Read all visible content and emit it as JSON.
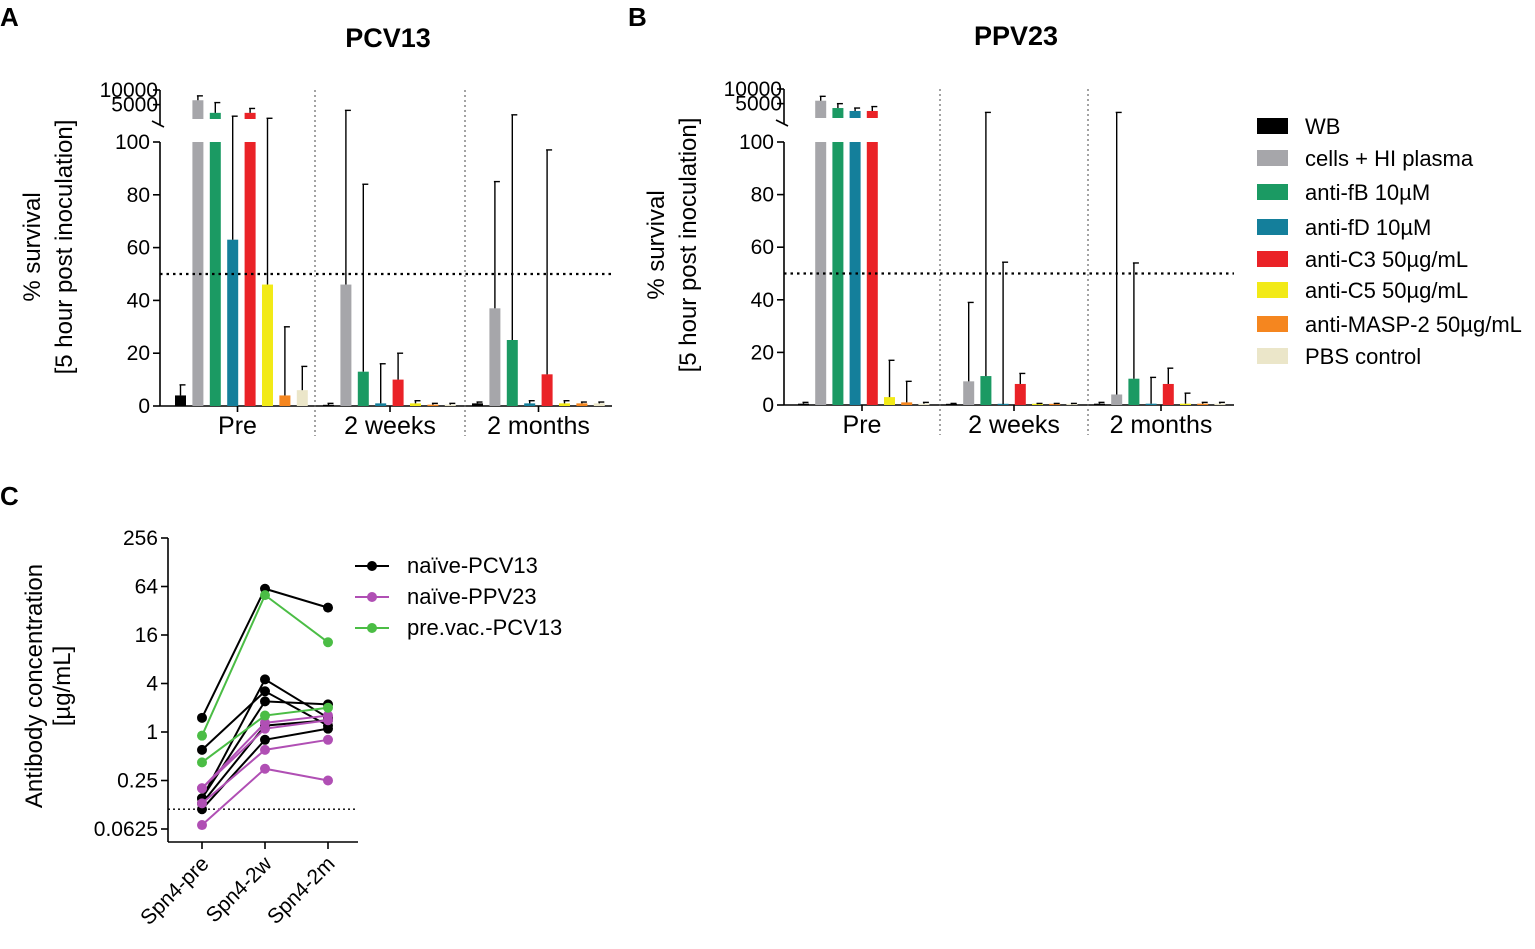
{
  "panels": {
    "a": "A",
    "b": "B",
    "c": "C"
  },
  "legend_ab": [
    {
      "label": "WB",
      "color": "#000000"
    },
    {
      "label": "cells + HI plasma",
      "color": "#a6a6aa"
    },
    {
      "label": "anti-fB 10µM",
      "color": "#1b9a63"
    },
    {
      "label": "anti-fD 10µM",
      "color": "#147f9b"
    },
    {
      "label": "anti-C3 50µg/mL",
      "color": "#ea2227"
    },
    {
      "label": "anti-C5 50µg/mL",
      "color": "#f2ea17"
    },
    {
      "label": "anti-MASP-2 50µg/mL",
      "color": "#f5861f"
    },
    {
      "label": "PBS control",
      "color": "#ebe6c9"
    }
  ],
  "chart_data": [
    {
      "type": "bar",
      "title": "PCV13",
      "ylabel_line1": "% survival",
      "ylabel_line2": "[5 hour post inoculation]",
      "yticks_lower": [
        "0",
        "20",
        "40",
        "60",
        "80",
        "100"
      ],
      "yticks_upper": [
        "5000",
        "10000"
      ],
      "ylim": [
        0,
        10000
      ],
      "axis_break": 100,
      "reference_line": 50,
      "categories": [
        "Pre",
        "2 weeks",
        "2 months"
      ],
      "series": [
        {
          "name": "WB",
          "values": [
            4,
            0,
            1
          ],
          "errors": [
            4,
            1,
            0.5
          ]
        },
        {
          "name": "cells + HI plasma",
          "values": [
            6500,
            46,
            37
          ],
          "errors": [
            1500,
            3000,
            48
          ]
        },
        {
          "name": "anti-fB 10µM",
          "values": [
            2200,
            13,
            25
          ],
          "errors": [
            3500,
            71,
            1500
          ]
        },
        {
          "name": "anti-fD 10µM",
          "values": [
            63,
            1,
            1
          ],
          "errors": [
            1000,
            15,
            1
          ]
        },
        {
          "name": "anti-C3 50µg/mL",
          "values": [
            2200,
            10,
            12
          ],
          "errors": [
            1500,
            10,
            85
          ]
        },
        {
          "name": "anti-C5 50µg/mL",
          "values": [
            46,
            1,
            1
          ],
          "errors": [
            300,
            1,
            1
          ]
        },
        {
          "name": "anti-MASP-2 50µg/mL",
          "values": [
            4,
            0.5,
            1
          ],
          "errors": [
            26,
            0.5,
            0.5
          ]
        },
        {
          "name": "PBS control",
          "values": [
            6,
            0.5,
            1
          ],
          "errors": [
            9,
            0.5,
            0.5
          ]
        }
      ]
    },
    {
      "type": "bar",
      "title": "PPV23",
      "ylabel_line1": "% survival",
      "ylabel_line2": "[5 hour post inoculation]",
      "yticks_lower": [
        "0",
        "20",
        "40",
        "60",
        "80",
        "100"
      ],
      "yticks_upper": [
        "5000",
        "10000"
      ],
      "ylim": [
        0,
        10000
      ],
      "axis_break": 100,
      "reference_line": 50,
      "categories": [
        "Pre",
        "2 weeks",
        "2 months"
      ],
      "series": [
        {
          "name": "WB",
          "values": [
            0.5,
            0.3,
            0.5
          ],
          "errors": [
            0.5,
            0.3,
            0.5
          ]
        },
        {
          "name": "cells + HI plasma",
          "values": [
            6000,
            9,
            4
          ],
          "errors": [
            1500,
            30,
            2000
          ]
        },
        {
          "name": "anti-fB 10µM",
          "values": [
            3500,
            11,
            10
          ],
          "errors": [
            1500,
            2000,
            44
          ]
        },
        {
          "name": "anti-fD 10µM",
          "values": [
            2500,
            0.3,
            0.5
          ],
          "errors": [
            1000,
            54,
            10
          ]
        },
        {
          "name": "anti-C3 50µg/mL",
          "values": [
            2500,
            8,
            8
          ],
          "errors": [
            1500,
            4,
            6
          ]
        },
        {
          "name": "anti-C5 50µg/mL",
          "values": [
            3,
            0.3,
            0.5
          ],
          "errors": [
            14,
            0.3,
            4
          ]
        },
        {
          "name": "anti-MASP-2 50µg/mL",
          "values": [
            1,
            0.3,
            0.5
          ],
          "errors": [
            8,
            0.3,
            0.5
          ]
        },
        {
          "name": "PBS control",
          "values": [
            0.5,
            0.3,
            0.5
          ],
          "errors": [
            0.5,
            0.3,
            0.5
          ]
        }
      ]
    },
    {
      "type": "line",
      "ylabel_line1": "Antibody concentration",
      "ylabel_line2": "[µg/mL]",
      "yscale": "log2",
      "yticks": [
        "0.0625",
        "0.25",
        "1",
        "4",
        "16",
        "64",
        "256"
      ],
      "ytick_values": [
        0.0625,
        0.25,
        1,
        4,
        16,
        64,
        256
      ],
      "ylim": [
        0.0625,
        256
      ],
      "reference_line": 0.11,
      "categories": [
        "Spn4-pre",
        "Spn4-2w",
        "Spn4-2m"
      ],
      "groups": [
        {
          "name": "naïve-PCV13",
          "color": "#000000",
          "subjects": [
            [
              1.5,
              60,
              35
            ],
            [
              0.6,
              3.2,
              1.2
            ],
            [
              0.15,
              4.5,
              1.5
            ],
            [
              0.15,
              2.4,
              2.2
            ],
            [
              0.13,
              1.2,
              1.4
            ],
            [
              0.11,
              0.8,
              1.1
            ]
          ]
        },
        {
          "name": "naïve-PPV23",
          "color": "#b04fb4",
          "subjects": [
            [
              0.2,
              1.1,
              1.4
            ],
            [
              0.13,
              0.6,
              0.8
            ],
            [
              0.07,
              0.35,
              0.25
            ],
            [
              0.2,
              1.3,
              1.6
            ]
          ]
        },
        {
          "name": "pre.vac.-PCV13",
          "color": "#4bbd45",
          "subjects": [
            [
              0.9,
              50,
              13
            ],
            [
              0.42,
              1.6,
              2
            ]
          ]
        }
      ]
    }
  ]
}
